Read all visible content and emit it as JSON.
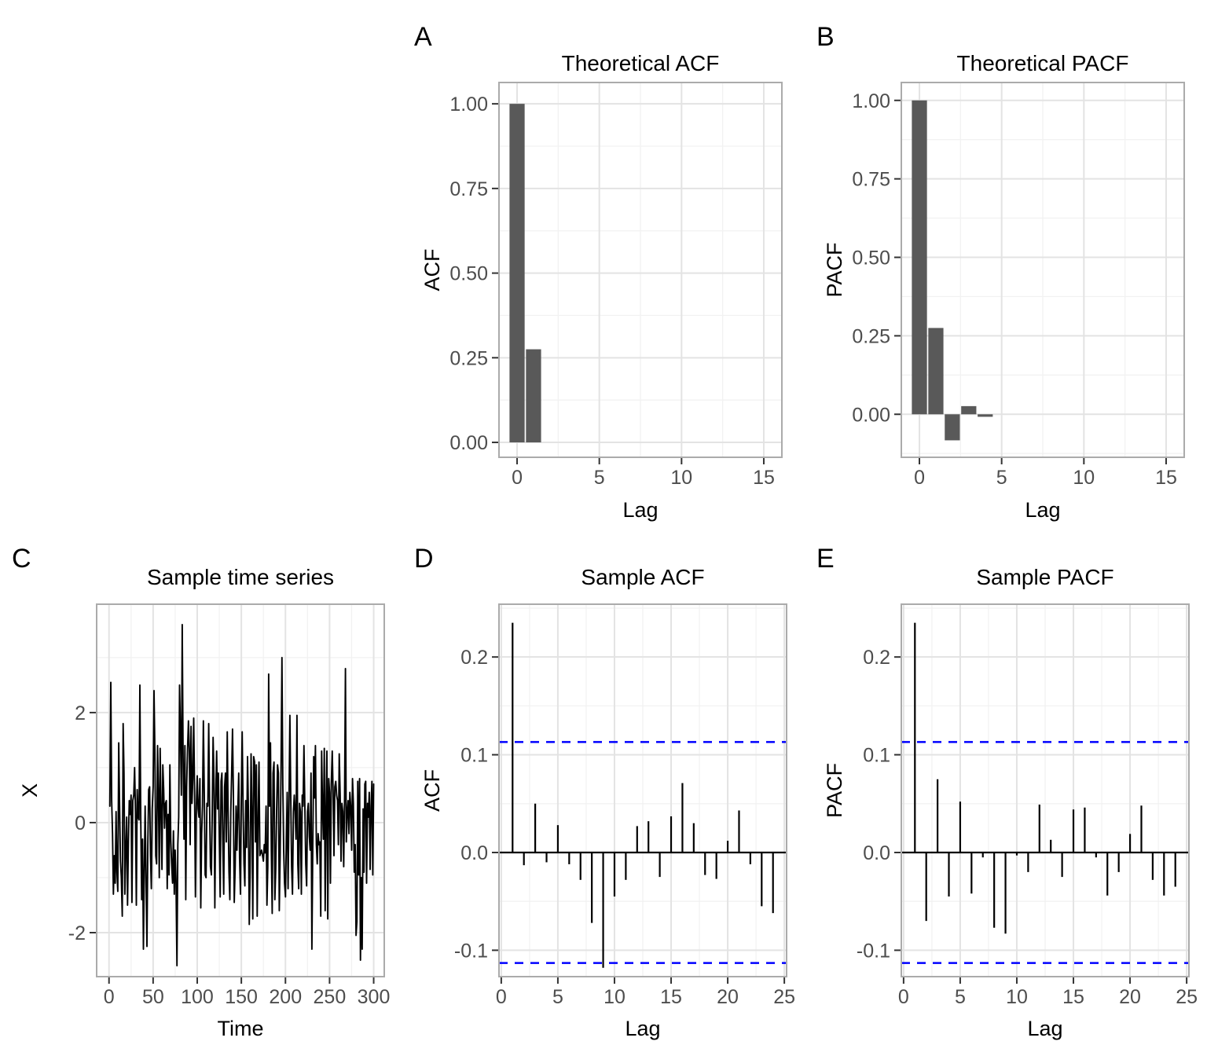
{
  "figure_title": "",
  "colors": {
    "background": "#FFFFFF",
    "bar_fill": "#595959",
    "series_line": "#000000",
    "stem_line": "#000000",
    "zero_line": "#000000",
    "confidence_band": "#0000FF",
    "grid_major": "#E3E3E3",
    "grid_minor": "#F2F2F2",
    "panel_border": "#ABABAB",
    "tick_mark": "#333333",
    "tick_label": "#4D4D4D",
    "text": "#000000"
  },
  "chart_data": [
    {
      "id": "theoretical-acf",
      "panel_label": "A",
      "type": "bar",
      "title": "Theoretical ACF",
      "xlabel": "Lag",
      "ylabel": "ACF",
      "x_start": 0,
      "values": [
        1.0,
        0.275,
        0,
        0,
        0,
        0,
        0,
        0,
        0,
        0,
        0,
        0,
        0,
        0,
        0,
        0
      ],
      "xlim": [
        -1.1,
        16.1
      ],
      "ylim": [
        -0.044,
        1.063
      ],
      "xticks": [
        0,
        5,
        10,
        15
      ],
      "xtick_labels": [
        "0",
        "5",
        "10",
        "15"
      ],
      "yticks": [
        0,
        0.25,
        0.5,
        0.75,
        1.0
      ],
      "ytick_labels": [
        "0.00",
        "0.25",
        "0.50",
        "0.75",
        "1.00"
      ],
      "grid": "major+minor",
      "legend": "none"
    },
    {
      "id": "theoretical-pacf",
      "panel_label": "B",
      "type": "bar",
      "title": "Theoretical PACF",
      "xlabel": "Lag",
      "ylabel": "PACF",
      "x_start": 0,
      "values": [
        1.0,
        0.275,
        -0.083,
        0.026,
        -0.008,
        0.002,
        -0.001,
        0,
        0,
        0,
        0,
        0,
        0,
        0,
        0,
        0
      ],
      "xlim": [
        -1.1,
        16.1
      ],
      "ylim": [
        -0.137,
        1.057
      ],
      "xticks": [
        0,
        5,
        10,
        15
      ],
      "xtick_labels": [
        "0",
        "5",
        "10",
        "15"
      ],
      "yticks": [
        0,
        0.25,
        0.5,
        0.75,
        1.0
      ],
      "ytick_labels": [
        "0.00",
        "0.25",
        "0.50",
        "0.75",
        "1.00"
      ],
      "grid": "major+minor",
      "legend": "none"
    },
    {
      "id": "sample-time-series",
      "panel_label": "C",
      "type": "line",
      "title": "Sample time series",
      "xlabel": "Time",
      "ylabel": "X",
      "x_start": 1,
      "values": [
        0.3,
        2.55,
        0.4,
        -0.2,
        -1.3,
        -0.6,
        -1.1,
        0.2,
        -0.9,
        -1.25,
        1.45,
        0.3,
        -0.7,
        -1.0,
        -1.7,
        1.8,
        0.9,
        -1.3,
        -0.5,
        0.1,
        -1.5,
        -0.35,
        0.4,
        0.15,
        0.5,
        -1.45,
        0.4,
        0.5,
        1.0,
        0.2,
        -1.5,
        0.6,
        0.1,
        0.05,
        2.5,
        0.1,
        -1.4,
        -0.3,
        -2.3,
        -0.9,
        0.3,
        -1.1,
        -2.25,
        -0.4,
        0.6,
        0.65,
        -0.6,
        -1.2,
        0.25,
        0.65,
        2.4,
        1.3,
        -0.6,
        -0.75,
        1.4,
        0.55,
        -1.0,
        1.35,
        0.2,
        -0.85,
        1.05,
        0.6,
        -0.1,
        0.35,
        0.4,
        -1.2,
        0.15,
        -0.95,
        1.05,
        -0.3,
        -0.75,
        -1.1,
        -0.15,
        -1.3,
        -0.5,
        -1.05,
        -2.6,
        -0.4,
        0.1,
        2.5,
        1.6,
        0.5,
        3.6,
        1.2,
        -0.3,
        1.4,
        -1.4,
        0.65,
        1.3,
        1.85,
        1.35,
        -0.4,
        1.75,
        0.35,
        0.8,
        1.9,
        0.6,
        -1.35,
        0.3,
        0.85,
        0.25,
        0.1,
        0.8,
        -1.55,
        -0.2,
        0.3,
        1.85,
        0.5,
        -0.95,
        -1.0,
        0.35,
        0.3,
        1.8,
        0.35,
        -0.8,
        -0.95,
        0.2,
        1.55,
        0.8,
        -1.55,
        0.5,
        1.3,
        0.25,
        0.9,
        -0.3,
        -1.35,
        0.75,
        0.9,
        -0.3,
        -1.3,
        0.65,
        0.9,
        -0.35,
        1.65,
        0.2,
        -0.9,
        -1.4,
        0.2,
        0.9,
        1.7,
        0.5,
        -1.45,
        -0.8,
        0.3,
        -0.5,
        0.2,
        0.9,
        -0.65,
        -1.3,
        0.45,
        1.65,
        0.2,
        -0.75,
        -1.15,
        0.4,
        -0.45,
        1.2,
        0.25,
        -1.85,
        -0.9,
        1.25,
        0.2,
        -1.75,
        1.2,
        1.1,
        -0.35,
        1.05,
        -1.7,
        0.1,
        1.1,
        -0.6,
        -0.55,
        -0.5,
        -0.6,
        -0.7,
        -0.4,
        -0.55,
        0.3,
        -1.5,
        -0.8,
        2.7,
        0.3,
        1.45,
        -0.5,
        -1.65,
        0.9,
        1.1,
        -1.4,
        -0.85,
        0.2,
        1.05,
        0.9,
        -1.6,
        -0.6,
        0.9,
        3.0,
        0.7,
        -0.5,
        -1.1,
        -1.35,
        -0.3,
        0.55,
        -1.2,
        0.25,
        1.95,
        0.5,
        -0.8,
        -1.3,
        0.2,
        0.5,
        0.2,
        -0.3,
        1.95,
        -0.75,
        -1.2,
        0.35,
        0.2,
        -1.3,
        0.5,
        0.3,
        1.4,
        0.25,
        -0.75,
        -1.15,
        0.2,
        0.35,
        -0.25,
        -0.5,
        0.9,
        -2.3,
        -0.35,
        1.2,
        0.45,
        1.4,
        -0.4,
        -0.75,
        -0.2,
        -0.4,
        -0.35,
        -1.7,
        1.3,
        0.3,
        -0.3,
        1.35,
        -1.6,
        0.2,
        1.3,
        -1.75,
        0.8,
        0.55,
        -1.1,
        0.7,
        1.3,
        0.55,
        -0.6,
        0.65,
        0.75,
        0.5,
        0.4,
        -0.4,
        1.25,
        0.5,
        -0.7,
        0.35,
        0.2,
        -0.8,
        0.45,
        2.8,
        -0.35,
        0.15,
        0.4,
        -0.2,
        0.55,
        0.3,
        -0.5,
        0.8,
        0.35,
        -0.9,
        -0.4,
        -2.05,
        -1.8,
        0.75,
        -0.95,
        0.8,
        -2.5,
        -1.0,
        -2.3,
        0.25,
        -0.9,
        0.7,
        0.75,
        -1.1,
        0.35,
        0.1,
        0.55,
        -0.85,
        0.3,
        0.75,
        -0.95,
        0.7
      ],
      "xlim": [
        -14,
        312
      ],
      "ylim": [
        -2.8,
        3.97
      ],
      "xticks": [
        0,
        50,
        100,
        150,
        200,
        250,
        300
      ],
      "xtick_labels": [
        "0",
        "50",
        "100",
        "150",
        "200",
        "250",
        "300"
      ],
      "yticks": [
        -2,
        0,
        2
      ],
      "ytick_labels": [
        "-2",
        "0",
        "2"
      ],
      "grid": "major+minor",
      "legend": "none"
    },
    {
      "id": "sample-acf",
      "panel_label": "D",
      "type": "stem",
      "title": "Sample ACF",
      "xlabel": "Lag",
      "ylabel": "ACF",
      "x_start": 1,
      "values": [
        0.235,
        -0.013,
        0.05,
        -0.01,
        0.028,
        -0.012,
        -0.028,
        -0.072,
        -0.118,
        -0.045,
        -0.028,
        0.027,
        0.032,
        -0.025,
        0.037,
        0.071,
        0.03,
        -0.023,
        -0.027,
        0.012,
        0.043,
        -0.012,
        -0.055,
        -0.062
      ],
      "conf_band": {
        "upper": 0.113,
        "lower": -0.113,
        "style": "dashed"
      },
      "zero_line": 0,
      "xlim": [
        -0.2,
        25.2
      ],
      "ylim": [
        -0.127,
        0.254
      ],
      "xticks": [
        0,
        5,
        10,
        15,
        20,
        25
      ],
      "xtick_labels": [
        "0",
        "5",
        "10",
        "15",
        "20",
        "25"
      ],
      "yticks": [
        -0.1,
        0,
        0.1,
        0.2
      ],
      "ytick_labels": [
        "-0.1",
        "0.0",
        "0.1",
        "0.2"
      ],
      "grid": "major+minor",
      "legend": "none"
    },
    {
      "id": "sample-pacf",
      "panel_label": "E",
      "type": "stem",
      "title": "Sample PACF",
      "xlabel": "Lag",
      "ylabel": "PACF",
      "x_start": 1,
      "values": [
        0.235,
        -0.07,
        0.075,
        -0.045,
        0.052,
        -0.042,
        -0.005,
        -0.077,
        -0.083,
        -0.003,
        -0.02,
        0.049,
        0.013,
        -0.025,
        0.044,
        0.046,
        -0.005,
        -0.044,
        -0.02,
        0.019,
        0.048,
        -0.028,
        -0.044,
        -0.035
      ],
      "conf_band": {
        "upper": 0.113,
        "lower": -0.113,
        "style": "dashed"
      },
      "zero_line": 0,
      "xlim": [
        -0.2,
        25.2
      ],
      "ylim": [
        -0.127,
        0.254
      ],
      "xticks": [
        0,
        5,
        10,
        15,
        20,
        25
      ],
      "xtick_labels": [
        "0",
        "5",
        "10",
        "15",
        "20",
        "25"
      ],
      "yticks": [
        -0.1,
        0,
        0.1,
        0.2
      ],
      "ytick_labels": [
        "-0.1",
        "0.0",
        "0.1",
        "0.2"
      ],
      "grid": "major+minor",
      "legend": "none"
    }
  ]
}
